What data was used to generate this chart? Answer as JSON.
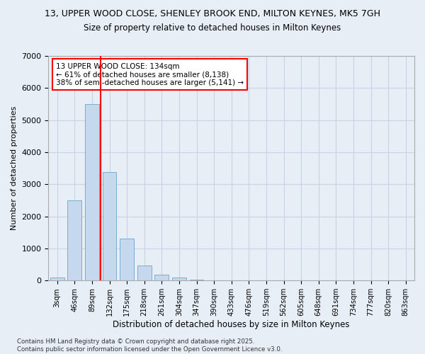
{
  "title_line1": "13, UPPER WOOD CLOSE, SHENLEY BROOK END, MILTON KEYNES, MK5 7GH",
  "title_line2": "Size of property relative to detached houses in Milton Keynes",
  "xlabel": "Distribution of detached houses by size in Milton Keynes",
  "ylabel": "Number of detached properties",
  "categories": [
    "3sqm",
    "46sqm",
    "89sqm",
    "132sqm",
    "175sqm",
    "218sqm",
    "261sqm",
    "304sqm",
    "347sqm",
    "390sqm",
    "433sqm",
    "476sqm",
    "519sqm",
    "562sqm",
    "605sqm",
    "648sqm",
    "691sqm",
    "734sqm",
    "777sqm",
    "820sqm",
    "863sqm"
  ],
  "values": [
    100,
    2500,
    5500,
    3380,
    1300,
    460,
    190,
    90,
    30,
    5,
    2,
    1,
    0,
    0,
    0,
    0,
    0,
    0,
    0,
    0,
    0
  ],
  "bar_color": "#c5d8ed",
  "bar_edge_color": "#7aadd4",
  "grid_color": "#c8d4e4",
  "background_color": "#e8eef6",
  "annotation_text": "13 UPPER WOOD CLOSE: 134sqm\n← 61% of detached houses are smaller (8,138)\n38% of semi-detached houses are larger (5,141) →",
  "vline_x": 2.5,
  "vline_color": "red",
  "annotation_box_color": "white",
  "annotation_box_edge": "red",
  "ylim": [
    0,
    7000
  ],
  "yticks": [
    0,
    1000,
    2000,
    3000,
    4000,
    5000,
    6000,
    7000
  ],
  "footnote": "Contains HM Land Registry data © Crown copyright and database right 2025.\nContains public sector information licensed under the Open Government Licence v3.0."
}
